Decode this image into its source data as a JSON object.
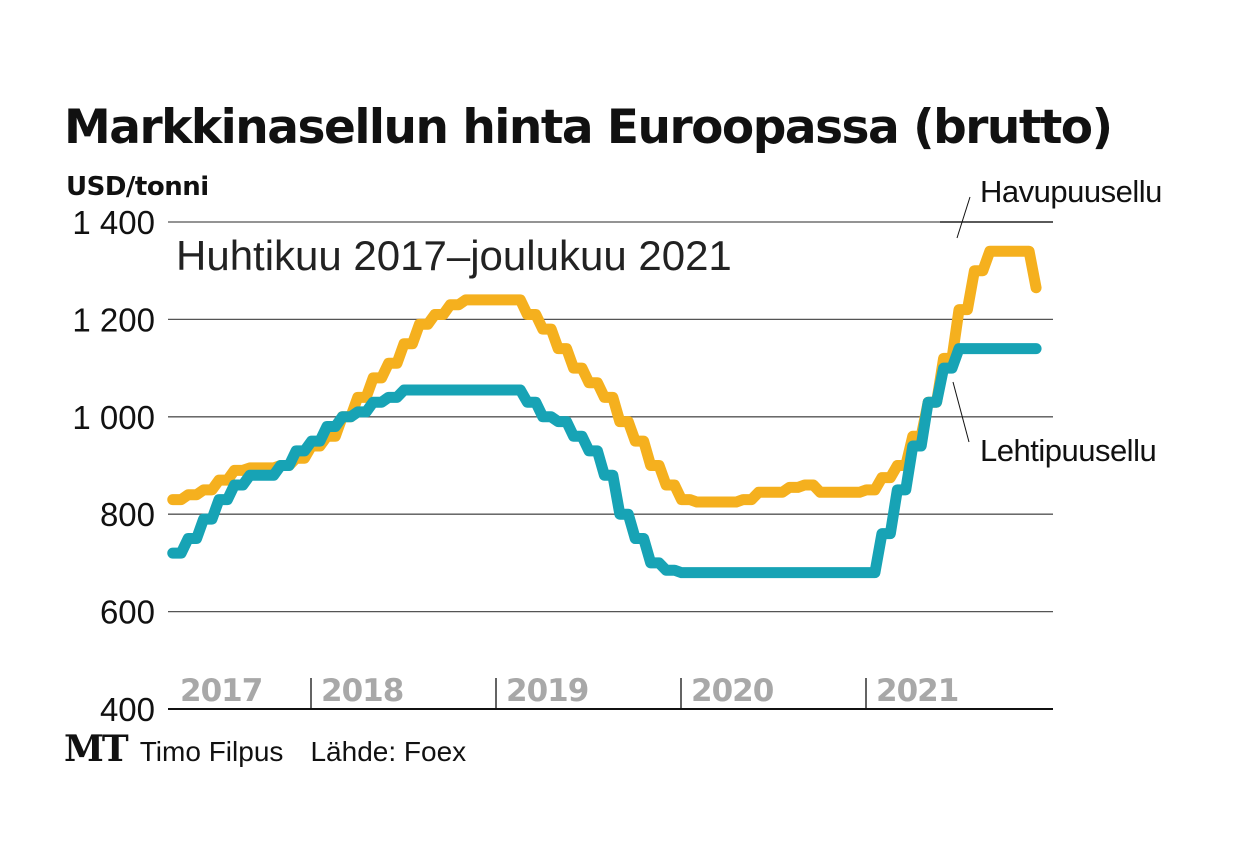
{
  "title": "Markkinasellun hinta Euroopassa (brutto)",
  "unit_label": "USD/tonni",
  "footer": {
    "logo": "MT",
    "author": "Timo Filpus",
    "source": "Lähde: Foex"
  },
  "chart_data": {
    "type": "line",
    "title": "Markkinasellun hinta Euroopassa (brutto)",
    "subtitle": "Huhtikuu 2017–joulukuu 2021",
    "ylabel": "USD/tonni",
    "xlabel": "",
    "ylim": [
      400,
      1400
    ],
    "yticks": [
      400,
      600,
      800,
      1000,
      1200,
      1400
    ],
    "ytick_labels": [
      "400",
      "600",
      "800",
      "1 000",
      "1 200",
      "1 400"
    ],
    "grid": true,
    "x_start": "2017-04",
    "x_end": "2021-12",
    "x_unit": "month",
    "year_labels": [
      "2017",
      "2018",
      "2019",
      "2020",
      "2021"
    ],
    "legend": "direct-labels-right",
    "series": [
      {
        "name": "Havupuusellu",
        "color": "#F5B01E",
        "values": [
          830,
          840,
          850,
          870,
          890,
          895,
          895,
          900,
          915,
          940,
          960,
          1000,
          1040,
          1080,
          1110,
          1150,
          1190,
          1210,
          1230,
          1240,
          1240,
          1240,
          1240,
          1210,
          1180,
          1140,
          1100,
          1070,
          1040,
          990,
          950,
          900,
          860,
          830,
          825,
          825,
          825,
          830,
          845,
          845,
          855,
          860,
          845,
          845,
          845,
          850,
          875,
          900,
          960,
          1030,
          1120,
          1220,
          1300,
          1340,
          1340,
          1340,
          1265
        ]
      },
      {
        "name": "Lehtipuusellu",
        "color": "#17A3B5",
        "values": [
          720,
          750,
          790,
          830,
          860,
          880,
          880,
          900,
          930,
          950,
          980,
          1000,
          1010,
          1030,
          1040,
          1055,
          1055,
          1055,
          1055,
          1055,
          1055,
          1055,
          1055,
          1030,
          1000,
          990,
          960,
          930,
          880,
          800,
          750,
          700,
          685,
          680,
          680,
          680,
          680,
          680,
          680,
          680,
          680,
          680,
          680,
          680,
          680,
          680,
          760,
          850,
          940,
          1030,
          1100,
          1140,
          1140,
          1140,
          1140,
          1140,
          1140
        ]
      }
    ]
  }
}
